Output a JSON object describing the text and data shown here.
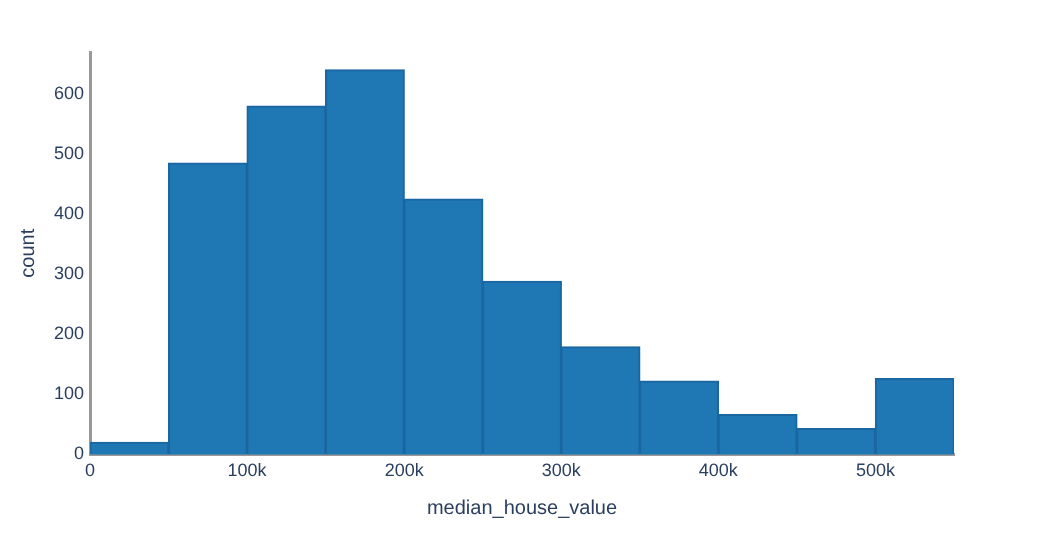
{
  "chart_data": {
    "type": "histogram",
    "xlabel": "median_house_value",
    "ylabel": "count",
    "bins": [
      0,
      50000,
      100000,
      150000,
      200000,
      250000,
      300000,
      350000,
      400000,
      450000,
      500000,
      550000
    ],
    "values": [
      20,
      485,
      580,
      640,
      425,
      288,
      179,
      122,
      66,
      43,
      126
    ],
    "color": "#1f77b4",
    "xlim": [
      0,
      550000
    ],
    "xticks": [
      0,
      {
        "value": 100000,
        "label": "100k"
      },
      {
        "value": 200000,
        "label": "200k"
      },
      {
        "value": 300000,
        "label": "300k"
      },
      {
        "value": 400000,
        "label": "400k"
      },
      {
        "value": 500000,
        "label": "500k"
      }
    ],
    "ylim": [
      0,
      670
    ],
    "yticks": [
      0,
      100,
      200,
      300,
      400,
      500,
      600
    ],
    "grid": false,
    "legend": false
  }
}
